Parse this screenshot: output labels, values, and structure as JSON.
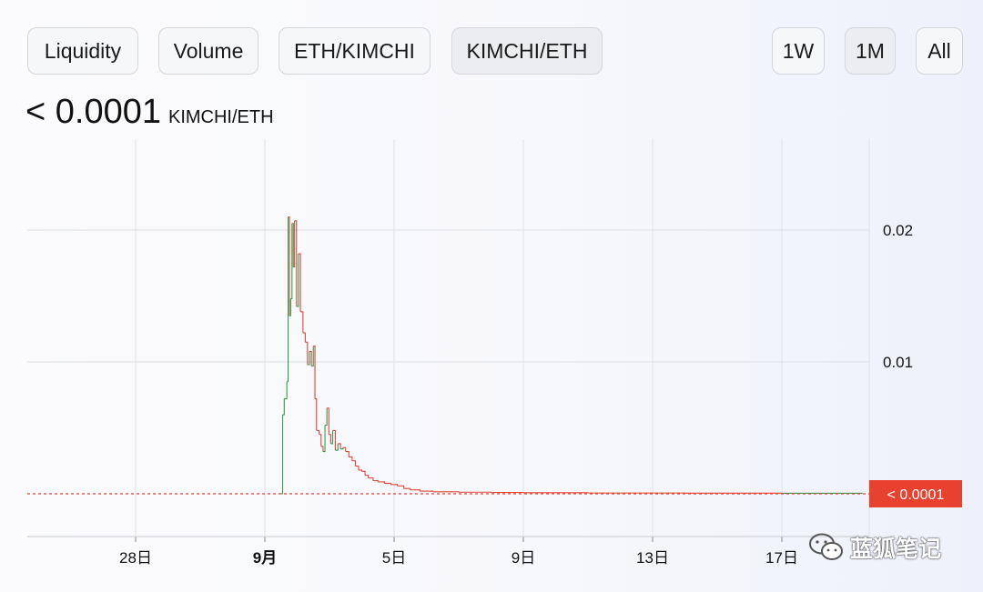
{
  "toolbar": {
    "left_buttons": [
      "Liquidity",
      "Volume",
      "ETH/KIMCHI",
      "KIMCHI/ETH"
    ],
    "range_buttons": [
      "1W",
      "1M",
      "All"
    ],
    "active_pair": "KIMCHI/ETH",
    "active_range": "1M"
  },
  "header": {
    "price": "< 0.0001",
    "unit": "KIMCHI/ETH"
  },
  "watermark": {
    "text": "蓝狐笔记",
    "icon": "wechat-icon"
  },
  "colors": {
    "up": "#2e9e4f",
    "down": "#e0463a",
    "current_price": "#e8412f",
    "grid": "#e2e4e8"
  },
  "chart_data": {
    "type": "line",
    "x_ticks": [
      {
        "day": -4,
        "label": "28日",
        "bold": false
      },
      {
        "day": 0,
        "label": "9月",
        "bold": true
      },
      {
        "day": 4,
        "label": "5日",
        "bold": false
      },
      {
        "day": 8,
        "label": "9日",
        "bold": false
      },
      {
        "day": 12,
        "label": "13日",
        "bold": false
      },
      {
        "day": 16,
        "label": "17日",
        "bold": false
      }
    ],
    "y_ticks": [
      {
        "value": 0.02,
        "label": "0.02"
      },
      {
        "value": 0.01,
        "label": "0.01"
      }
    ],
    "ylim": [
      0,
      0.02
    ],
    "current_price_label": "< 0.0001",
    "series": [
      {
        "values": [
          [
            0.5,
            0.0
          ],
          [
            0.55,
            0.006
          ],
          [
            0.6,
            0.0072
          ],
          [
            0.68,
            0.0085
          ],
          [
            0.72,
            0.021
          ],
          [
            0.76,
            0.0135
          ],
          [
            0.8,
            0.0148
          ],
          [
            0.84,
            0.0205
          ],
          [
            0.88,
            0.0172
          ],
          [
            0.92,
            0.0207
          ],
          [
            0.98,
            0.0142
          ],
          [
            1.04,
            0.0182
          ],
          [
            1.1,
            0.0138
          ],
          [
            1.18,
            0.0122
          ],
          [
            1.25,
            0.0115
          ],
          [
            1.32,
            0.0098
          ],
          [
            1.38,
            0.0108
          ],
          [
            1.44,
            0.0097
          ],
          [
            1.5,
            0.0112
          ],
          [
            1.55,
            0.0072
          ],
          [
            1.6,
            0.0048
          ],
          [
            1.68,
            0.0045
          ],
          [
            1.74,
            0.0036
          ],
          [
            1.8,
            0.0032
          ],
          [
            1.86,
            0.0052
          ],
          [
            1.92,
            0.0065
          ],
          [
            1.98,
            0.0045
          ],
          [
            2.04,
            0.0038
          ],
          [
            2.1,
            0.0048
          ],
          [
            2.18,
            0.0033
          ],
          [
            2.26,
            0.0038
          ],
          [
            2.34,
            0.0034
          ],
          [
            2.42,
            0.0035
          ],
          [
            2.5,
            0.0032
          ],
          [
            2.6,
            0.0028
          ],
          [
            2.7,
            0.0025
          ],
          [
            2.8,
            0.0021
          ],
          [
            2.9,
            0.0018
          ],
          [
            3.0,
            0.0017
          ],
          [
            3.1,
            0.0014
          ],
          [
            3.2,
            0.0012
          ],
          [
            3.35,
            0.001
          ],
          [
            3.5,
            0.0009
          ],
          [
            3.7,
            0.0008
          ],
          [
            3.9,
            0.0007
          ],
          [
            4.1,
            0.0006
          ],
          [
            4.3,
            0.0004
          ],
          [
            4.5,
            0.0003
          ],
          [
            4.8,
            0.0002
          ],
          [
            5.2,
            0.00015
          ],
          [
            6.0,
            0.00012
          ],
          [
            7.0,
            0.0001
          ],
          [
            8.0,
            8e-05
          ],
          [
            10.0,
            6e-05
          ],
          [
            13.0,
            5e-05
          ],
          [
            16.0,
            4e-05
          ],
          [
            18.5,
            4e-05
          ]
        ]
      }
    ],
    "grid": true
  }
}
